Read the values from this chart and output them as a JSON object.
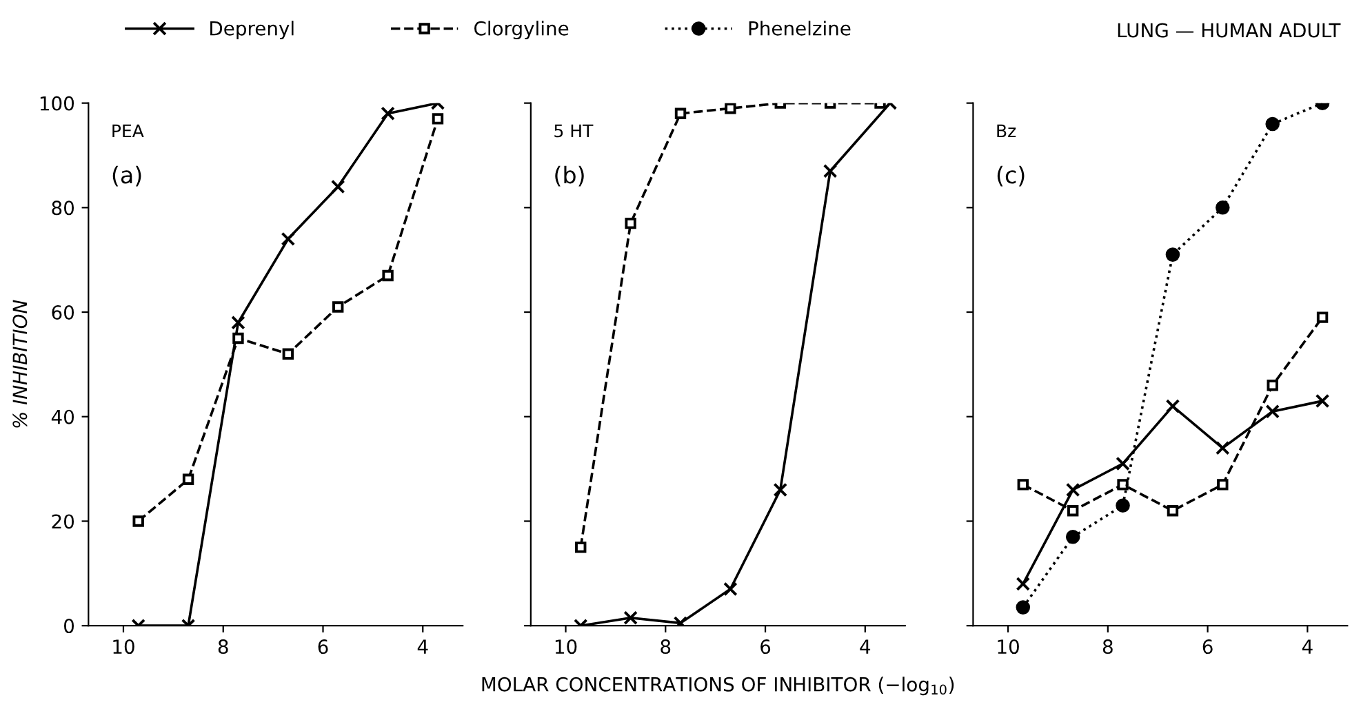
{
  "chart_data": [
    {
      "type": "line",
      "ylabel": "% INHIBITION",
      "annotations": [
        "PEA",
        "(a)"
      ],
      "x": [
        9.7,
        8.7,
        7.7,
        6.7,
        5.7,
        4.7,
        3.7
      ],
      "xlim": [
        10.7,
        3.2
      ],
      "xticks": [
        10,
        8,
        6,
        4
      ],
      "ylim": [
        0,
        100
      ],
      "yticks": [
        0,
        20,
        40,
        60,
        80,
        100
      ],
      "series": [
        {
          "color": "#000000",
          "marker": "cross",
          "line_style": "solid",
          "values": [
            0,
            0,
            58,
            74,
            84,
            98,
            100
          ]
        },
        {
          "color": "#000000",
          "marker": "square",
          "line_style": "dashed",
          "values": [
            20,
            28,
            55,
            52,
            61,
            67,
            97
          ]
        }
      ]
    },
    {
      "type": "line",
      "xlabel": "MOLAR CONCENTRATIONS OF INHIBITOR (−log$_{10}$)",
      "annotations": [
        "5 HT",
        "(b)"
      ],
      "x": [
        9.7,
        8.7,
        7.7,
        6.7,
        5.7,
        4.7,
        3.7
      ],
      "xlim": [
        10.7,
        3.2
      ],
      "xticks": [
        10,
        8,
        6,
        4
      ],
      "ylim": [
        0,
        100
      ],
      "yticks": [
        0,
        20,
        40,
        60,
        80,
        100
      ],
      "tick_labels": "x",
      "series": [
        {
          "color": "#000000",
          "marker": "cross",
          "line_style": "solid",
          "x": [
            9.7,
            8.7,
            7.7,
            6.7,
            5.7,
            4.7,
            3.5
          ],
          "values": [
            0,
            1.5,
            0.5,
            7,
            26,
            87,
            100
          ]
        },
        {
          "color": "#000000",
          "marker": "square",
          "line_style": "dashed",
          "values": [
            15,
            77,
            98,
            99,
            100,
            100,
            100
          ]
        }
      ]
    },
    {
      "type": "line",
      "title": "LUNG — HUMAN ADULT",
      "annotations": [
        "Bz",
        "(c)"
      ],
      "x": [
        9.7,
        8.7,
        7.7,
        6.7,
        5.7,
        4.7,
        3.7
      ],
      "xlim": [
        10.7,
        3.2
      ],
      "xticks": [
        10,
        8,
        6,
        4
      ],
      "ylim": [
        0,
        100
      ],
      "yticks": [
        0,
        20,
        40,
        60,
        80,
        100
      ],
      "tick_labels": "x",
      "legend": "top",
      "series": [
        {
          "name": "Deprenyl",
          "color": "#000000",
          "marker": "cross",
          "line_style": "solid",
          "values": [
            8,
            26,
            31,
            42,
            34,
            41,
            43
          ]
        },
        {
          "name": "Clorgyline",
          "color": "#000000",
          "marker": "square",
          "line_style": "dashed",
          "values": [
            27,
            22,
            27,
            22,
            27,
            46,
            59
          ]
        },
        {
          "name": "Phenelzine",
          "color": "#000000",
          "marker": "circle",
          "line_style": "dotted",
          "values": [
            3.5,
            17,
            23,
            71,
            80,
            96,
            100
          ]
        }
      ]
    }
  ]
}
